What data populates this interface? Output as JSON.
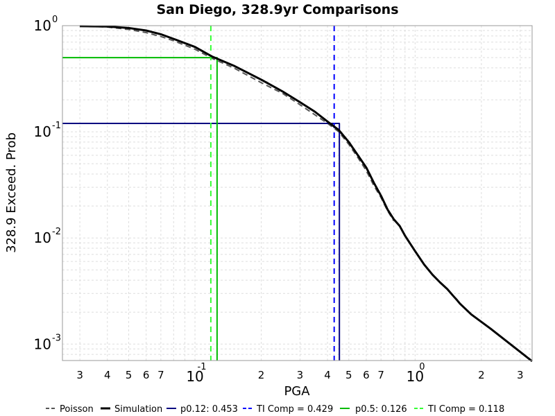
{
  "chart_data": {
    "type": "line",
    "title": "San Diego, 328.9yr Comparisons",
    "xlabel": "PGA",
    "ylabel": "328.9 Exceed. Prob",
    "xscale": "log",
    "yscale": "log",
    "xlim": [
      0.025,
      3.4
    ],
    "ylim": [
      0.0007,
      1.0
    ],
    "grid": true,
    "legend_position": "bottom",
    "x_ticks": {
      "major": [
        {
          "value": 0.1,
          "base": "10",
          "exp": "-1"
        },
        {
          "value": 1,
          "base": "10",
          "exp": "0"
        }
      ],
      "minor": [
        {
          "value": 0.03,
          "label": "3"
        },
        {
          "value": 0.04,
          "label": "4"
        },
        {
          "value": 0.05,
          "label": "5"
        },
        {
          "value": 0.06,
          "label": "6"
        },
        {
          "value": 0.07,
          "label": "7"
        },
        {
          "value": 0.2,
          "label": "2"
        },
        {
          "value": 0.3,
          "label": "3"
        },
        {
          "value": 0.4,
          "label": "4"
        },
        {
          "value": 0.5,
          "label": "5"
        },
        {
          "value": 0.6,
          "label": "6"
        },
        {
          "value": 0.7,
          "label": "7"
        },
        {
          "value": 2,
          "label": "2"
        },
        {
          "value": 3,
          "label": "3"
        }
      ]
    },
    "y_ticks": [
      {
        "value": 1,
        "base": "10",
        "exp": "0"
      },
      {
        "value": 0.1,
        "base": "10",
        "exp": "-1"
      },
      {
        "value": 0.01,
        "base": "10",
        "exp": "-2"
      },
      {
        "value": 0.001,
        "base": "10",
        "exp": "-3"
      }
    ],
    "series": [
      {
        "name": "Poisson",
        "color": "#555555",
        "style": "dashed",
        "x": [
          0.03,
          0.04,
          0.05,
          0.06,
          0.07,
          0.08,
          0.1,
          0.12,
          0.15,
          0.2,
          0.25,
          0.3,
          0.35,
          0.4,
          0.45,
          0.5,
          0.55,
          0.6,
          0.65,
          0.7,
          0.75,
          0.8
        ],
        "y": [
          0.99,
          0.97,
          0.92,
          0.86,
          0.79,
          0.72,
          0.6,
          0.49,
          0.4,
          0.29,
          0.23,
          0.18,
          0.145,
          0.12,
          0.1,
          0.076,
          0.057,
          0.043,
          0.031,
          0.024,
          0.018,
          0.0145
        ]
      },
      {
        "name": "Simulation",
        "color": "#000000",
        "style": "solid",
        "x": [
          0.03,
          0.04,
          0.05,
          0.06,
          0.07,
          0.08,
          0.1,
          0.12,
          0.15,
          0.2,
          0.25,
          0.3,
          0.35,
          0.4,
          0.45,
          0.5,
          0.55,
          0.6,
          0.65,
          0.7,
          0.75,
          0.8,
          0.85,
          0.9,
          1.0,
          1.1,
          1.2,
          1.3,
          1.4,
          1.5,
          1.55,
          1.6,
          1.8,
          2.2,
          3.4
        ],
        "y": [
          0.99,
          0.98,
          0.95,
          0.9,
          0.83,
          0.75,
          0.63,
          0.51,
          0.42,
          0.31,
          0.24,
          0.19,
          0.155,
          0.125,
          0.104,
          0.08,
          0.06,
          0.046,
          0.033,
          0.025,
          0.0185,
          0.015,
          0.013,
          0.0105,
          0.0075,
          0.0056,
          0.0045,
          0.0038,
          0.0033,
          0.0028,
          0.0026,
          0.0024,
          0.0019,
          0.0014,
          0.00069
        ]
      },
      {
        "name": "p0.12: 0.453",
        "color": "#000080",
        "style": "solid",
        "x": [
          0.025,
          0.453,
          0.453
        ],
        "y": [
          0.12,
          0.12,
          0.0007
        ]
      },
      {
        "name": "TI Comp = 0.429",
        "color": "#0000ff",
        "style": "dashed",
        "x": [
          0.429,
          0.429
        ],
        "y": [
          1.0,
          0.0007
        ]
      },
      {
        "name": "p0.5: 0.126",
        "color": "#00bb00",
        "style": "solid",
        "x": [
          0.025,
          0.126,
          0.126
        ],
        "y": [
          0.5,
          0.5,
          0.0007
        ]
      },
      {
        "name": "TI Comp = 0.118",
        "color": "#33ff33",
        "style": "dashed",
        "x": [
          0.118,
          0.118
        ],
        "y": [
          1.0,
          0.0007
        ]
      }
    ]
  }
}
